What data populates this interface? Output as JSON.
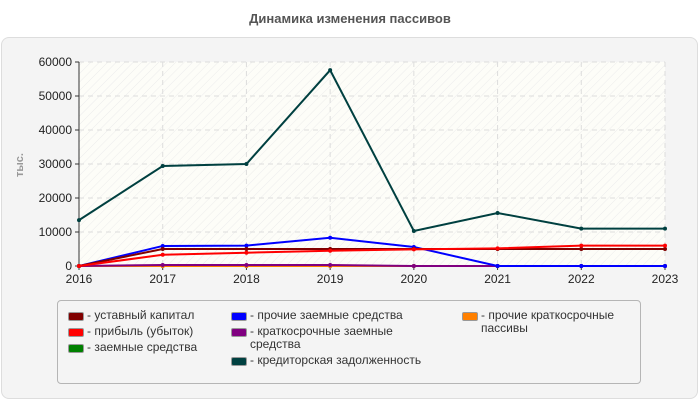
{
  "title": "Динамика изменения пассивов",
  "chart_data": {
    "type": "line",
    "title": "Динамика изменения пассивов",
    "xlabel": "",
    "ylabel": "тыс.",
    "x": [
      2016,
      2017,
      2018,
      2019,
      2020,
      2021,
      2022,
      2023
    ],
    "ylim": [
      0,
      60000
    ],
    "yticks": [
      0,
      10000,
      20000,
      30000,
      40000,
      50000,
      60000
    ],
    "grid": true,
    "legend_position": "bottom",
    "series": [
      {
        "name": "уставный капитал",
        "color": "#800000",
        "values": [
          0,
          5000,
          5000,
          5000,
          5000,
          5000,
          5000,
          5000
        ]
      },
      {
        "name": "прибыль (убыток)",
        "color": "#ff0000",
        "values": [
          0,
          3300,
          3900,
          4500,
          4900,
          5200,
          6000,
          6000
        ]
      },
      {
        "name": "заемные средства",
        "color": "#008000",
        "values": [
          0,
          0,
          0,
          0,
          0,
          0,
          0,
          0
        ]
      },
      {
        "name": "прочие заемные средства",
        "color": "#0000ff",
        "values": [
          0,
          5900,
          6000,
          8300,
          5600,
          0,
          0,
          0
        ]
      },
      {
        "name": "краткосрочные заемные средства",
        "color": "#800080",
        "values": [
          0,
          300,
          300,
          300,
          0,
          0,
          0,
          0
        ]
      },
      {
        "name": "кредиторская задолженность",
        "color": "#004040",
        "values": [
          13500,
          29400,
          30000,
          57600,
          10300,
          15600,
          11000,
          11000
        ]
      },
      {
        "name": "прочие краткосрочные пассивы",
        "color": "#ff8000",
        "values": [
          0,
          0,
          0,
          0,
          0,
          0,
          0,
          0
        ]
      }
    ]
  },
  "legend": {
    "col1": [
      "- уставный капитал",
      "- прибыль (убыток)",
      "- заемные средства"
    ],
    "col2": [
      "- прочие заемные средства",
      "- краткосрочные заемные средства",
      "- кредиторская задолженность"
    ],
    "col3": [
      "- прочие краткосрочные пассивы"
    ]
  }
}
